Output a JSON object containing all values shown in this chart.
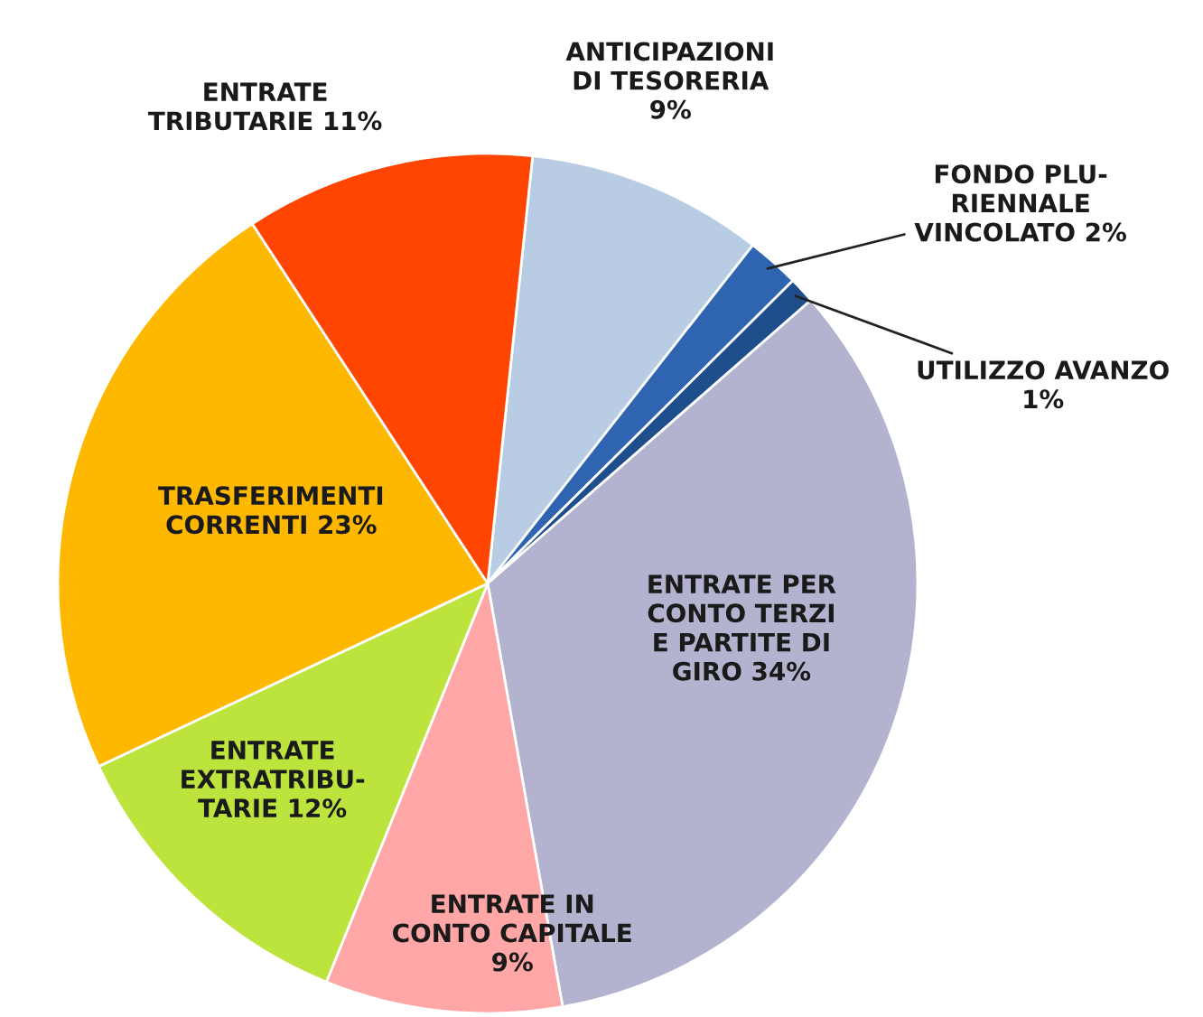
{
  "chart_data": {
    "type": "pie",
    "categories": [
      "ANTICIPAZIONI\nDI TESORERIA\n9%",
      "FONDO PLU-\nRIENNALE\nVINCOLATO 2%",
      "UTILIZZO AVANZO\n1%",
      "ENTRATE PER\nCONTO TERZI\nE PARTITE DI\nGIRO 34%",
      "ENTRATE IN\nCONTO CAPITALE\n9%",
      "ENTRATE\nEXTRATRIBU-\nTARIE 12%",
      "TRASFERIMENTI\nCORRENTI 23%",
      "ENTRATE\nTRIBUTARIE 11%"
    ],
    "values": [
      9,
      2,
      1,
      34,
      9,
      12,
      23,
      11
    ],
    "colors": [
      "#b8cce4",
      "#2e64b0",
      "#1f4e8c",
      "#b3b3cf",
      "#ffa6a6",
      "#bde33d",
      "#ffb800",
      "#ff4500"
    ]
  }
}
